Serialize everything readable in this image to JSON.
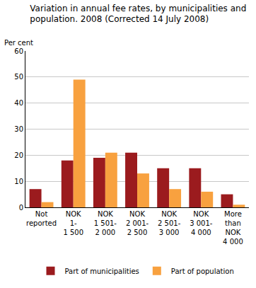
{
  "chart_data": {
    "type": "bar",
    "title": "Variation in annual fee rates, by municipalities and\npopulation. 2008 (Corrected 14 July 2008)",
    "ylabel": "Per cent",
    "categories": [
      "Not\nreported",
      "NOK\n1-\n1 500",
      "NOK\n1 501-\n2 000",
      "NOK\n2 001-\n2 500",
      "NOK\n2 501-\n3 000",
      "NOK\n3 001-\n4 000",
      "More\nthan\nNOK\n4 000"
    ],
    "series": [
      {
        "name": "Part of municipalities",
        "color": "#9b1b1e",
        "values": [
          7,
          18,
          19,
          21,
          15,
          15,
          5
        ]
      },
      {
        "name": "Part of population",
        "color": "#f8a13f",
        "values": [
          2,
          49,
          21,
          13,
          7,
          6,
          1
        ]
      }
    ],
    "ylim": [
      0,
      60
    ],
    "yticks": [
      0,
      10,
      20,
      30,
      40,
      50,
      60
    ],
    "grid": true,
    "legend": "bottom"
  }
}
